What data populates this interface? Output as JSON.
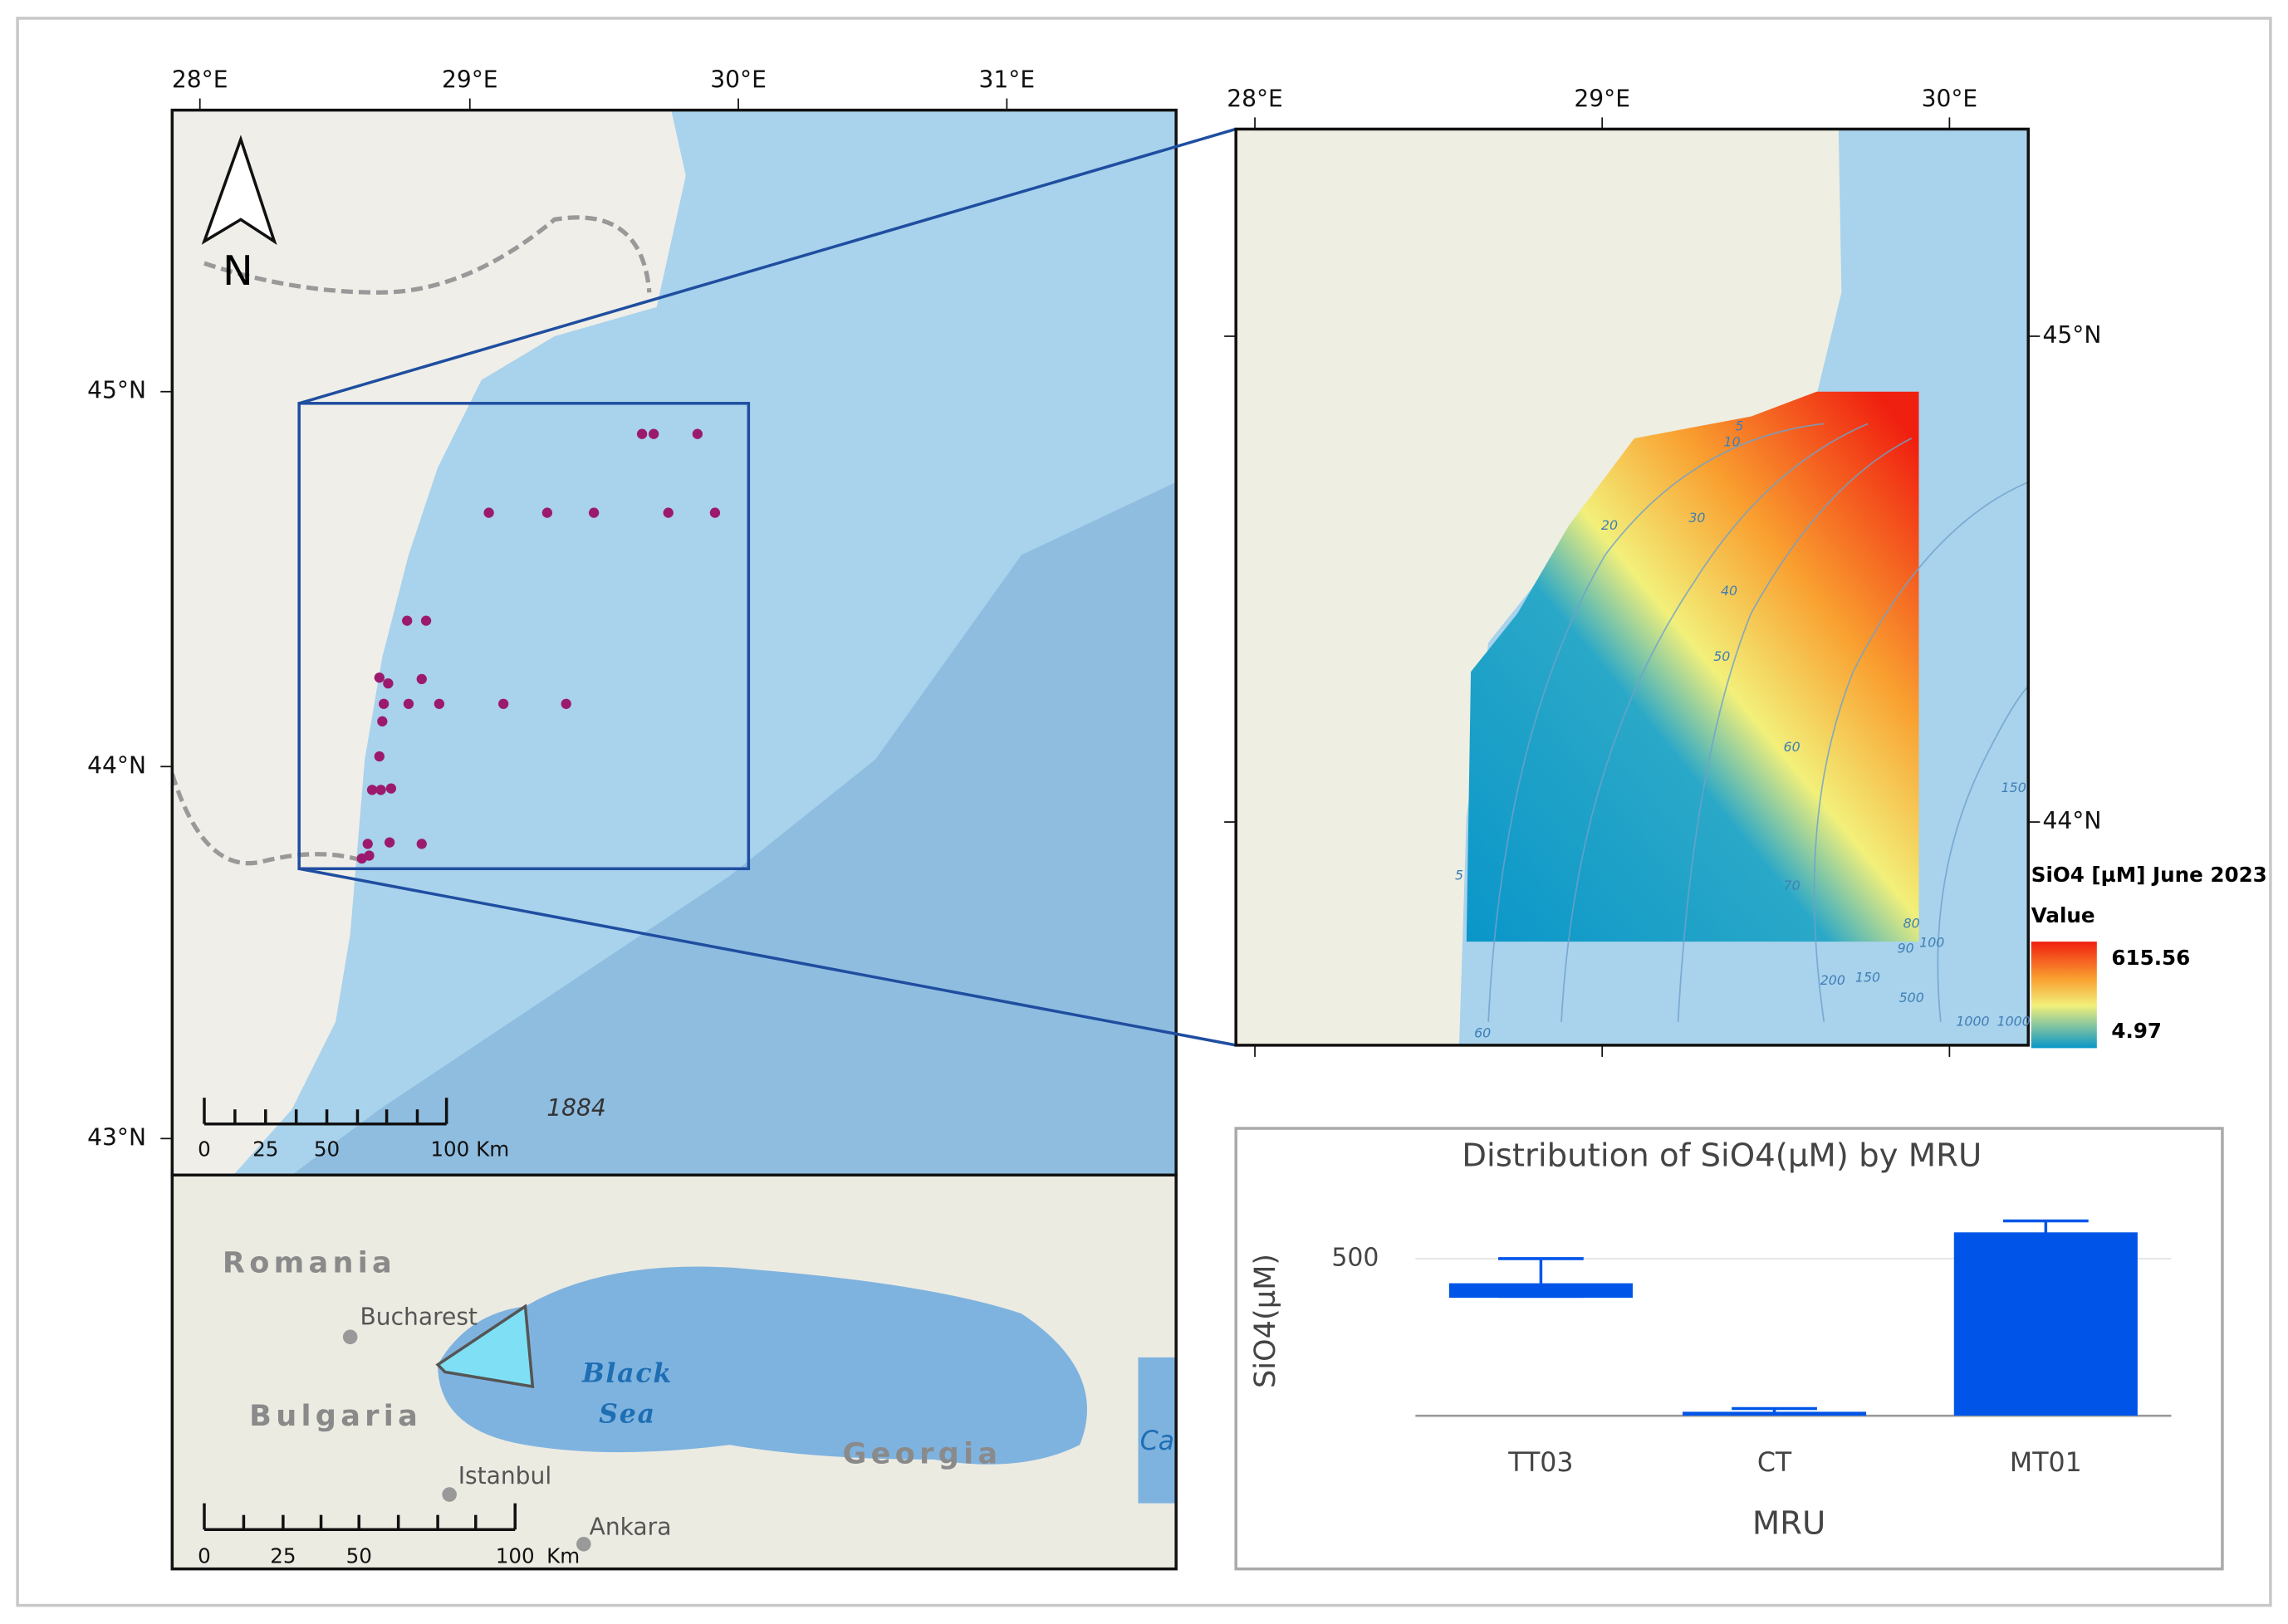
{
  "main_map": {
    "lon_labels": [
      "28°E",
      "29°E",
      "30°E",
      "31°E"
    ],
    "lat_labels": [
      "45°N",
      "44°N",
      "43°N"
    ],
    "north": "N",
    "annotation": "1884",
    "scale_labels": [
      "0",
      "25",
      "50",
      "100 Km"
    ]
  },
  "inset_map": {
    "labels": [
      "Romania",
      "Bucharest",
      "Bulgaria",
      "Black",
      "Sea",
      "Istanbul",
      "Ankara",
      "Georgia",
      "Ca"
    ],
    "scale_labels": [
      "0",
      "25",
      "50",
      "100",
      "Km"
    ]
  },
  "zoom_map": {
    "lon_labels": [
      "28°E",
      "29°E",
      "30°E"
    ],
    "lat_labels": [
      "45°N",
      "44°N"
    ],
    "contour_labels": [
      5,
      10,
      20,
      30,
      40,
      50,
      60,
      70,
      80,
      90,
      100,
      150,
      200,
      500,
      1000,
      1000,
      60,
      150,
      5
    ],
    "legend": {
      "title": "SiO4 [µM] June 2023",
      "subtitle": "Value",
      "max": 615.56,
      "min": 4.97
    }
  },
  "chart_data": {
    "type": "box",
    "title": "Distribution of SiO4(µM) by MRU",
    "x_label": "MRU",
    "y_label": "SiO4(µM)",
    "categories": [
      "TT03",
      "CT",
      "MT01"
    ],
    "low": [
      380,
      5,
      5
    ],
    "q1": [
      380,
      5,
      5
    ],
    "q3": [
      417,
      8,
      579
    ],
    "high": [
      500,
      23,
      620
    ],
    "color": "#0055e8",
    "ylim": [
      0,
      650
    ],
    "yticks": [
      500
    ],
    "grid": true
  }
}
